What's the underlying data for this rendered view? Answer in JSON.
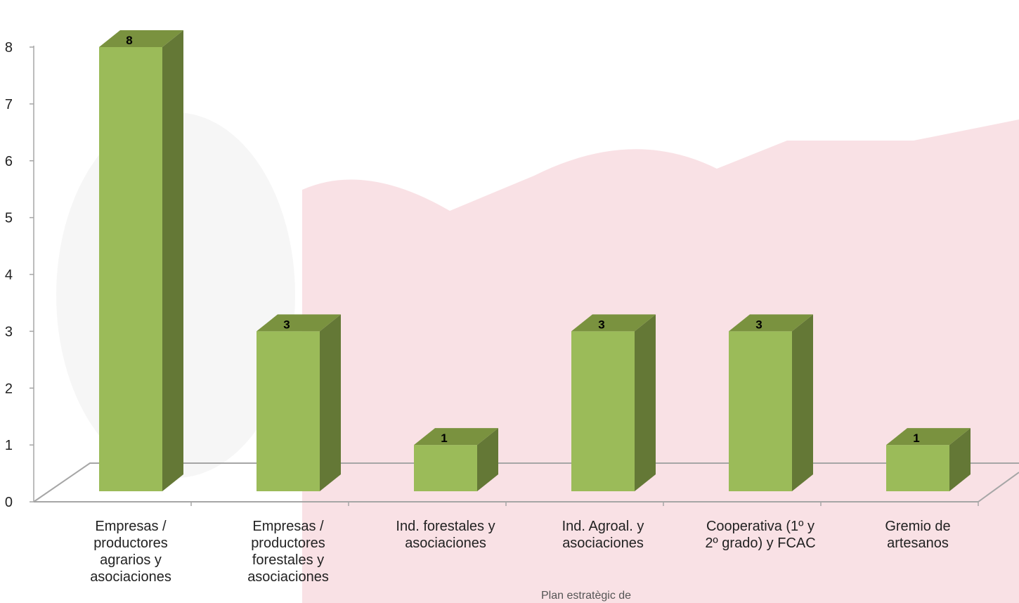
{
  "chart_data": {
    "type": "bar",
    "categories": [
      "Empresas / productores agrarios y asociaciones",
      "Empresas / productores forestales y asociaciones",
      "Ind. forestales y asociaciones",
      "Ind. Agroal. y asociaciones",
      "Cooperativa (1º y 2º grado) y FCAC",
      "Gremio de artesanos"
    ],
    "category_lines": [
      [
        "Empresas /",
        "productores",
        "agrarios y",
        "asociaciones"
      ],
      [
        "Empresas /",
        "productores",
        "forestales y",
        "asociaciones"
      ],
      [
        "Ind. forestales y",
        "asociaciones"
      ],
      [
        "Ind. Agroal. y",
        "asociaciones"
      ],
      [
        "Cooperativa (1º y",
        "2º grado) y FCAC"
      ],
      [
        "Gremio de",
        "artesanos"
      ]
    ],
    "values": [
      8,
      3,
      1,
      3,
      3,
      1
    ],
    "data_labels": [
      "8",
      "3",
      "1",
      "3",
      "3",
      "1"
    ],
    "yticks": [
      0,
      1,
      2,
      3,
      4,
      5,
      6,
      7,
      8
    ],
    "ylim": [
      0,
      8
    ],
    "style": "3d-column",
    "grid": false,
    "legend": "none",
    "colors": {
      "front": "#9BBB59",
      "side": "#647836",
      "top": "#7A923F",
      "floor_line": "#A6A6A6",
      "axis": "#A6A6A6",
      "watermark": "#D22A45"
    }
  },
  "watermark_text": "Plan estratègic de"
}
